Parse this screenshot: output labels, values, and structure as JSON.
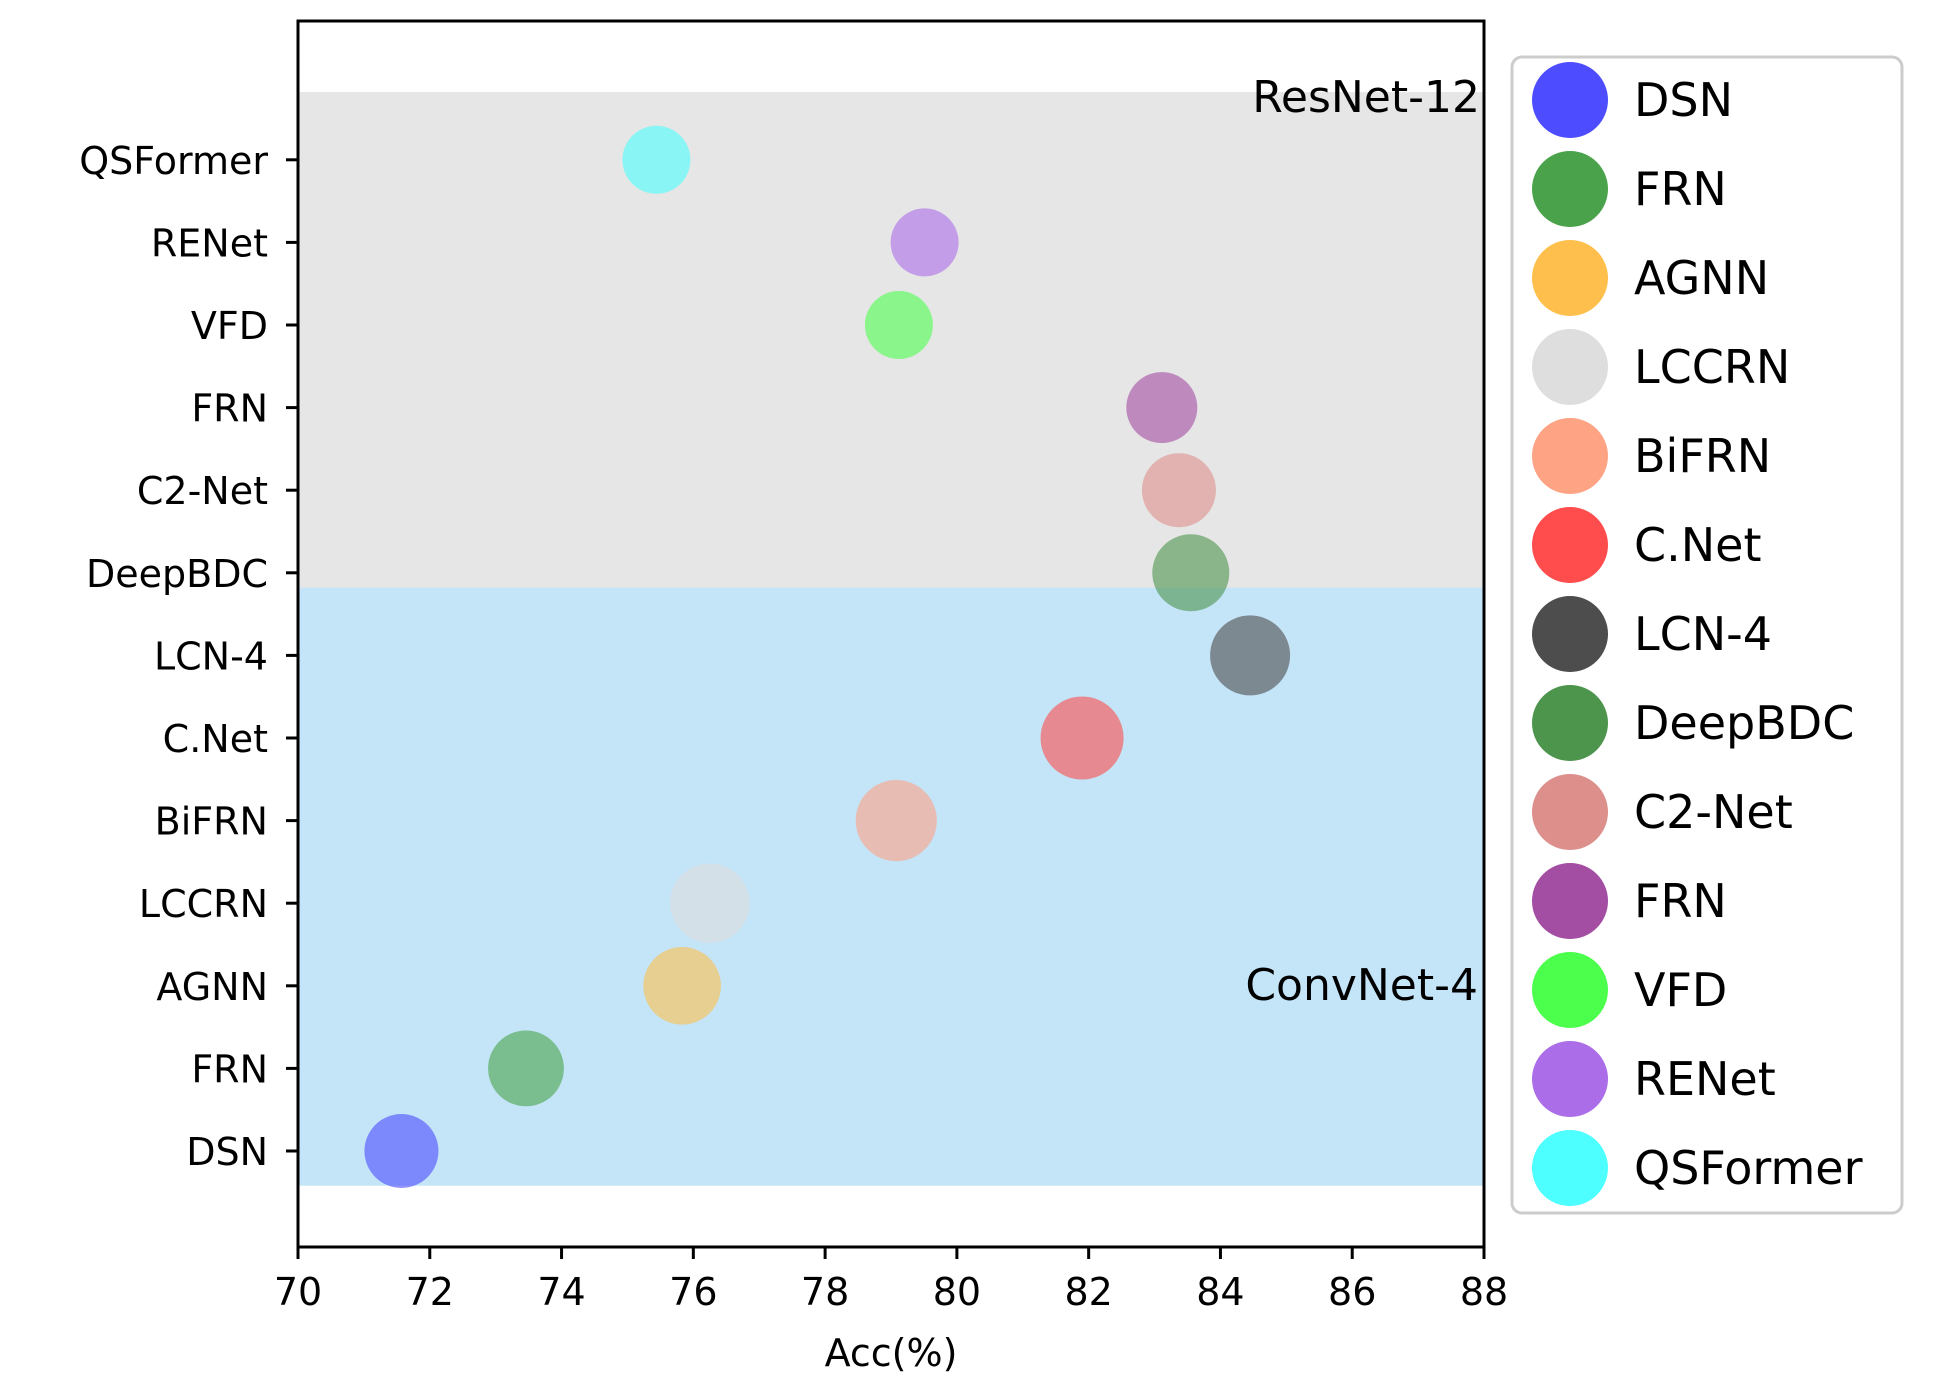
{
  "chart_data": {
    "type": "scatter",
    "xlabel": "Acc(%)",
    "xlim": [
      70,
      88
    ],
    "x_ticks": [
      "70",
      "72",
      "74",
      "76",
      "78",
      "80",
      "82",
      "84",
      "86",
      "88"
    ],
    "categories": [
      "DSN",
      "FRN",
      "AGNN",
      "LCCRN",
      "BiFRN",
      "C.Net",
      "LCN-4",
      "DeepBDC",
      "C2-Net",
      "FRN",
      "VFD",
      "RENet",
      "QSFormer"
    ],
    "regions": [
      {
        "label": "ResNet-12",
        "color": "#e6e6e6",
        "from_category": 6,
        "to_category": 12
      },
      {
        "label": "ConvNet-4",
        "color": "#c4e4f8",
        "from_category": 0,
        "to_category": 6
      }
    ],
    "points": [
      {
        "name": "DSN",
        "x": 71.57,
        "color": "#4d4dff"
      },
      {
        "name": "FRN",
        "x": 73.46,
        "color": "#4aa34a"
      },
      {
        "name": "AGNN",
        "x": 75.83,
        "color": "#ffbf4d"
      },
      {
        "name": "LCCRN",
        "x": 76.25,
        "color": "#dedede"
      },
      {
        "name": "BiFRN",
        "x": 79.08,
        "color": "#ffa385"
      },
      {
        "name": "C.Net",
        "x": 81.9,
        "color": "#ff4d4d"
      },
      {
        "name": "LCN-4",
        "x": 84.45,
        "color": "#4d4d4d"
      },
      {
        "name": "DeepBDC",
        "x": 83.55,
        "color": "#4d944d"
      },
      {
        "name": "C2-Net",
        "x": 83.37,
        "color": "#dd8f8c"
      },
      {
        "name": "FRN",
        "x": 83.11,
        "color": "#a34da3"
      },
      {
        "name": "VFD",
        "x": 79.12,
        "color": "#4dff4d"
      },
      {
        "name": "RENet",
        "x": 79.51,
        "color": "#ab6de8"
      },
      {
        "name": "QSFormer",
        "x": 75.44,
        "color": "#4dffff"
      }
    ],
    "legend": {
      "placement": "outside-right",
      "entries": [
        "DSN",
        "FRN",
        "AGNN",
        "LCCRN",
        "BiFRN",
        "C.Net",
        "LCN-4",
        "DeepBDC",
        "C2-Net",
        "FRN",
        "VFD",
        "RENet",
        "QSFormer"
      ]
    }
  }
}
